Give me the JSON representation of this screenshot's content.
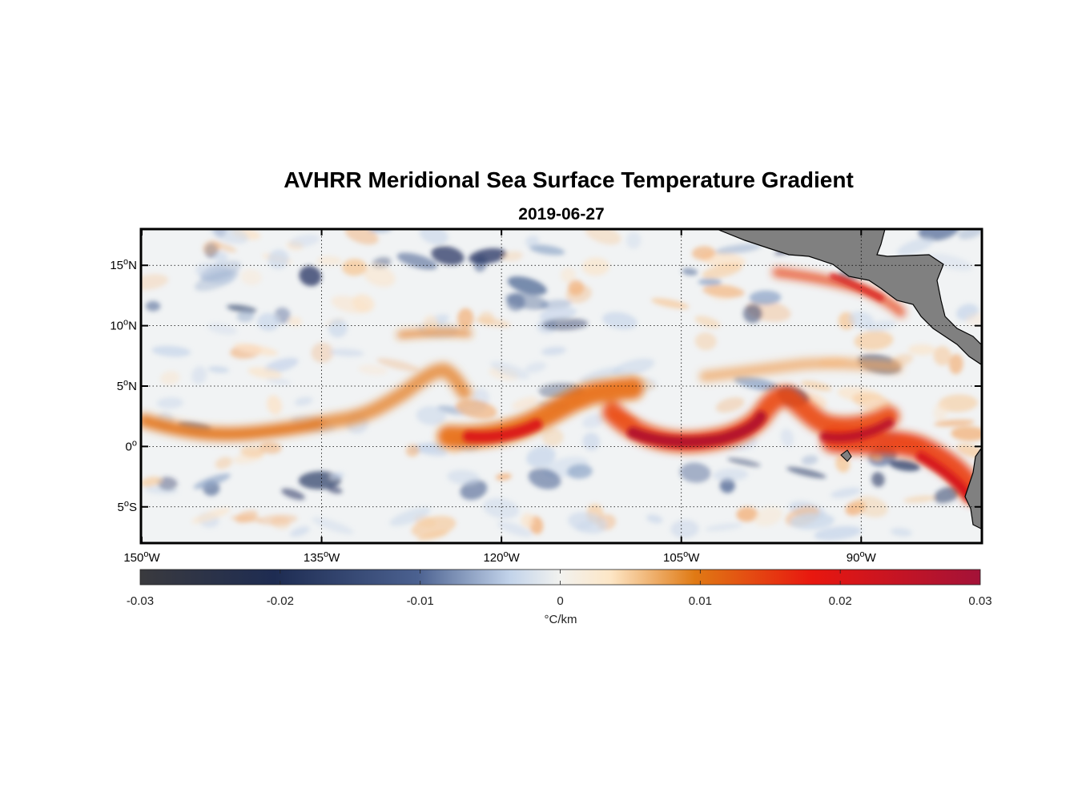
{
  "figure": {
    "title": "AVHRR Meridional Sea Surface Temperature Gradient",
    "subtitle": "2019-06-27"
  },
  "map": {
    "lon_range": [
      -150,
      -80
    ],
    "lat_range": [
      -8,
      18
    ],
    "x_ticks": [
      {
        "lon": -150,
        "deg": "150",
        "hemi": "W"
      },
      {
        "lon": -135,
        "deg": "135",
        "hemi": "W"
      },
      {
        "lon": -120,
        "deg": "120",
        "hemi": "W"
      },
      {
        "lon": -105,
        "deg": "105",
        "hemi": "W"
      },
      {
        "lon": -90,
        "deg": "90",
        "hemi": "W"
      }
    ],
    "y_ticks": [
      {
        "lat": 15,
        "deg": "15",
        "hemi": "N"
      },
      {
        "lat": 10,
        "deg": "10",
        "hemi": "N"
      },
      {
        "lat": 5,
        "deg": "5",
        "hemi": "N"
      },
      {
        "lat": 0,
        "deg": "0",
        "hemi": ""
      },
      {
        "lat": -5,
        "deg": "5",
        "hemi": "S"
      }
    ],
    "grid": "dotted",
    "land_color": "#808080"
  },
  "colorbar": {
    "range": [
      -0.03,
      0.03
    ],
    "ticks": [
      "-0.03",
      "-0.02",
      "-0.01",
      "0",
      "0.01",
      "0.02",
      "0.03"
    ],
    "unit": "°C/km",
    "stops": [
      "#3a3a3e",
      "#1e2c52",
      "#4b6190",
      "#c2d3ea",
      "#fdf4e4",
      "#e07a14",
      "#e8170f",
      "#a31238"
    ]
  }
}
